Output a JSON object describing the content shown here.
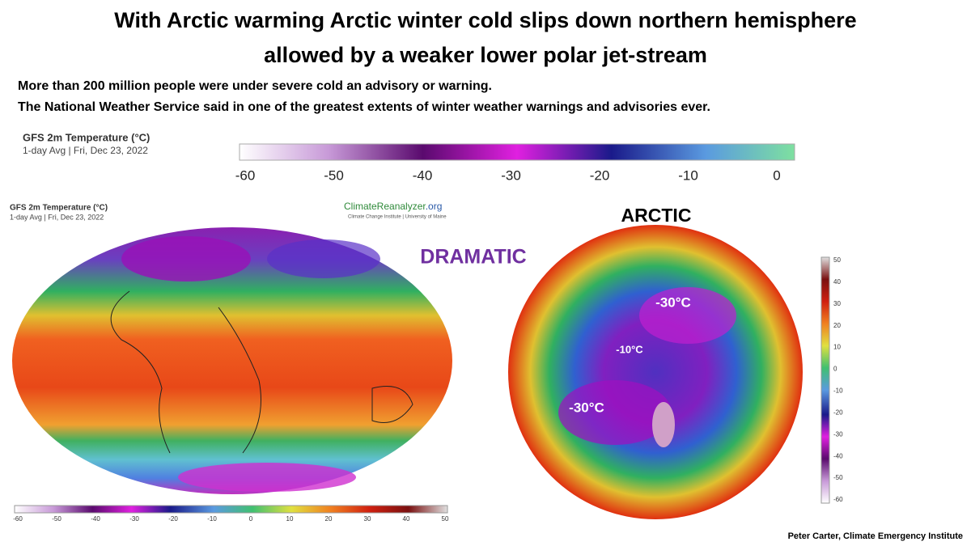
{
  "header": {
    "title_lines": [
      "With Arctic warming Arctic winter cold slips down northern hemisphere",
      "allowed by a weaker lower polar jet-stream"
    ],
    "subtitle_lines": [
      "More than 200 million people were under severe cold an advisory or warning.",
      "The National Weather Service said in one of the greatest extents of winter weather warnings and advisories ever."
    ]
  },
  "top_legend": {
    "title": "GFS 2m Temperature (°C)",
    "subtitle": "1-day Avg | Fri, Dec 23, 2022",
    "ticks": [
      -60,
      -50,
      -40,
      -30,
      -20,
      -10,
      0
    ]
  },
  "world_map": {
    "title": "GFS 2m Temperature (°C)",
    "subtitle": "1-day Avg | Fri, Dec 23, 2022",
    "brand_name": "ClimateReanalyzer",
    "brand_tld": ".org",
    "brand_sub": "Climate Change Institute | University of Maine",
    "ticks": [
      -60,
      -50,
      -40,
      -30,
      -20,
      -10,
      0,
      10,
      20,
      30,
      40,
      50
    ]
  },
  "annotation": "DRAMATIC",
  "arctic_map": {
    "title": "ARCTIC",
    "labels": [
      "-30°C",
      "-10°C",
      "-30°C"
    ],
    "ticks": [
      50,
      40,
      30,
      20,
      10,
      0,
      -10,
      -20,
      -30,
      -40,
      -50,
      -60
    ]
  },
  "credit": "Peter Carter, Climate Emergency Institute"
}
